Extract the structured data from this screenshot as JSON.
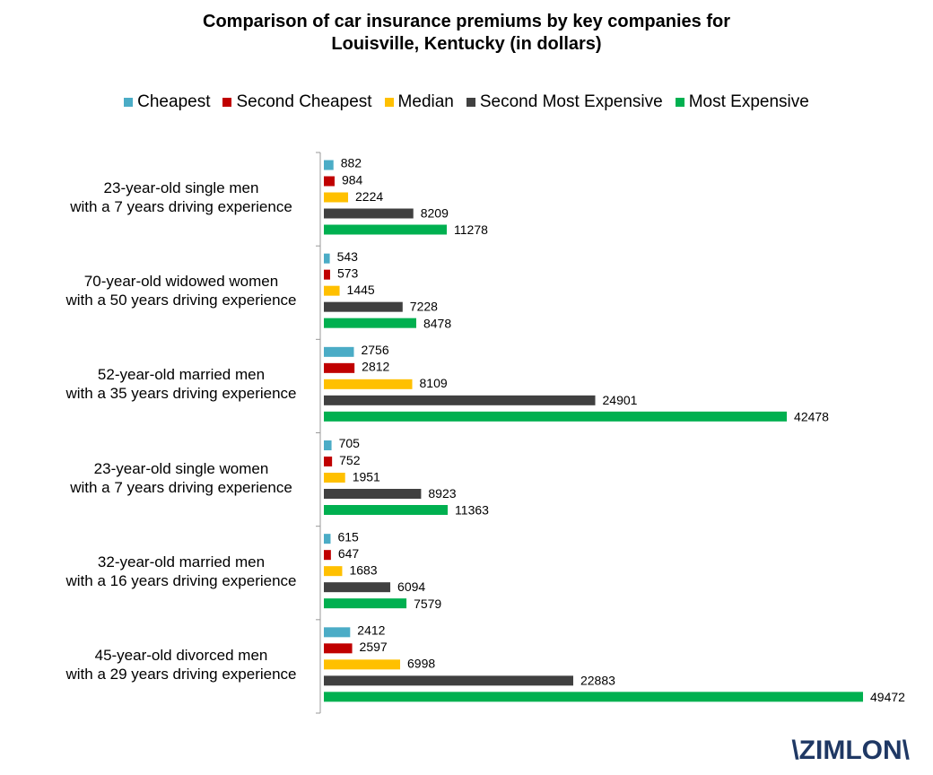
{
  "chart_data": {
    "type": "bar",
    "orientation": "horizontal",
    "title": "Comparison of car insurance premiums by key companies for\nLouisville, Kentucky (in dollars)",
    "categories": [
      "23-year-old single men\nwith a 7 years driving experience",
      "70-year-old widowed women\nwith a 50 years driving experience",
      "52-year-old married men\nwith a 35 years driving experience",
      "23-year-old single women\nwith a 7 years driving experience",
      "32-year-old married men\nwith a 16 years driving experience",
      "45-year-old divorced men\nwith a 29 years driving experience"
    ],
    "series": [
      {
        "name": "Cheapest",
        "color": "#4bacc6",
        "values": [
          882,
          543,
          2756,
          705,
          615,
          2412
        ]
      },
      {
        "name": "Second Cheapest",
        "color": "#c00000",
        "values": [
          984,
          573,
          2812,
          752,
          647,
          2597
        ]
      },
      {
        "name": "Median",
        "color": "#ffc000",
        "values": [
          2224,
          1445,
          8109,
          1951,
          1683,
          6998
        ]
      },
      {
        "name": "Second Most Expensive",
        "color": "#404040",
        "values": [
          8209,
          7228,
          24901,
          8923,
          6094,
          22883
        ]
      },
      {
        "name": "Most Expensive",
        "color": "#00b050",
        "values": [
          11278,
          8478,
          42478,
          11363,
          7579,
          49472
        ]
      }
    ],
    "legend": "top",
    "logo": "\\ZIMLON\\"
  }
}
